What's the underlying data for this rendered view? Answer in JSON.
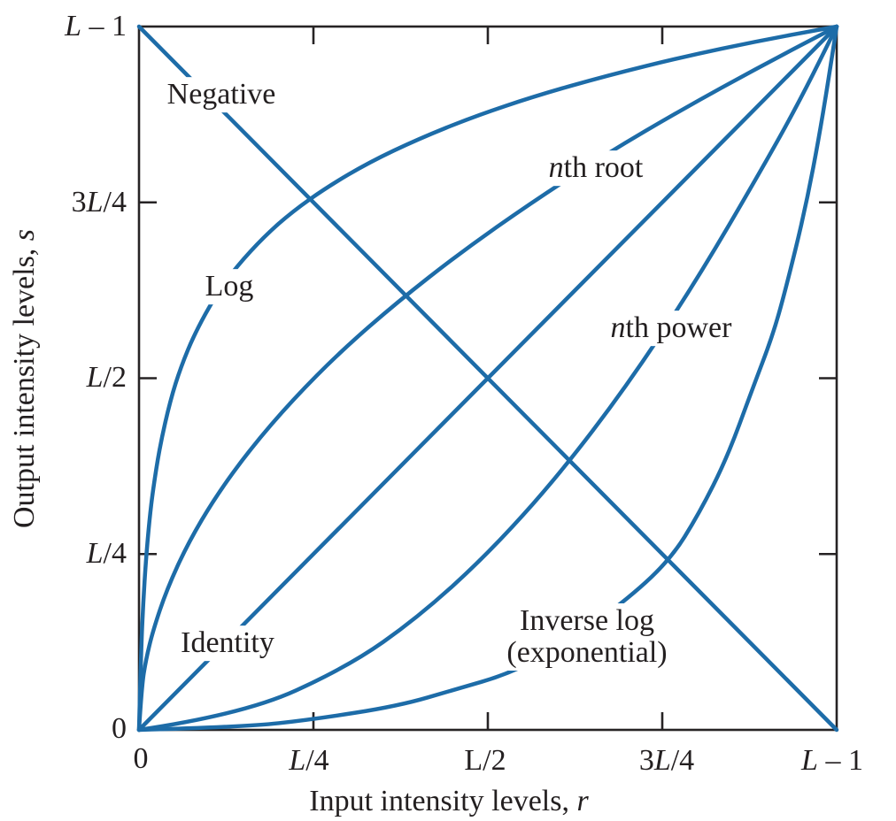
{
  "figure": {
    "background": "#ffffff",
    "curve_color": "#1d6ca8",
    "axis_color": "#262324",
    "text_color": "#231f20",
    "x_axis_title": "Input intensity levels, r",
    "y_axis_title": "Output intensity levels, s",
    "x_tick_labels": [
      "0",
      "L/4",
      "L/2",
      "3L/4",
      "L – 1"
    ],
    "y_tick_labels": [
      "0",
      "L/4",
      "L/2",
      "3L/4",
      "L – 1"
    ],
    "curve_labels": {
      "negative": "Negative",
      "log": "Log",
      "nth_root": "nth root",
      "nth_power": "nth power",
      "identity": "Identity",
      "inverse_log_line1": "Inverse log",
      "inverse_log_line2": "(exponential)"
    }
  },
  "chart_data": {
    "type": "line",
    "title": "",
    "xlabel": "Input intensity levels, r",
    "ylabel": "Output intensity levels, s",
    "x_ticks": [
      "0",
      "L/4",
      "L/2",
      "3L/4",
      "L – 1"
    ],
    "y_ticks": [
      "0",
      "L/4",
      "L/2",
      "3L/4",
      "L – 1"
    ],
    "x_range": [
      0,
      1
    ],
    "y_range": [
      0,
      1
    ],
    "units": "fraction of L – 1",
    "grid": false,
    "legend": "none (labels placed on curves)",
    "line_color": "#1d6ca8",
    "curves": [
      {
        "name": "Negative",
        "label": "Negative",
        "points": [
          [
            0,
            1
          ],
          [
            1,
            0
          ]
        ]
      },
      {
        "name": "Log",
        "label": "Log",
        "points": [
          [
            0,
            0
          ],
          [
            0.003,
            0.113
          ],
          [
            0.006,
            0.18
          ],
          [
            0.01,
            0.243
          ],
          [
            0.015,
            0.299
          ],
          [
            0.02,
            0.341
          ],
          [
            0.03,
            0.404
          ],
          [
            0.045,
            0.469
          ],
          [
            0.06,
            0.516
          ],
          [
            0.08,
            0.564
          ],
          [
            0.11,
            0.618
          ],
          [
            0.14,
            0.659
          ],
          [
            0.18,
            0.702
          ],
          [
            0.22,
            0.737
          ],
          [
            0.27,
            0.772
          ],
          [
            0.33,
            0.807
          ],
          [
            0.4,
            0.84
          ],
          [
            0.48,
            0.872
          ],
          [
            0.57,
            0.902
          ],
          [
            0.67,
            0.93
          ],
          [
            0.78,
            0.957
          ],
          [
            0.89,
            0.98
          ],
          [
            1,
            1
          ]
        ]
      },
      {
        "name": "nth root",
        "label": "nth root",
        "points": [
          [
            0,
            0
          ],
          [
            0.004,
            0.063
          ],
          [
            0.01,
            0.1
          ],
          [
            0.02,
            0.141
          ],
          [
            0.04,
            0.2
          ],
          [
            0.07,
            0.265
          ],
          [
            0.11,
            0.332
          ],
          [
            0.16,
            0.4
          ],
          [
            0.22,
            0.469
          ],
          [
            0.29,
            0.539
          ],
          [
            0.37,
            0.608
          ],
          [
            0.46,
            0.678
          ],
          [
            0.56,
            0.748
          ],
          [
            0.67,
            0.819
          ],
          [
            0.78,
            0.883
          ],
          [
            0.89,
            0.943
          ],
          [
            1,
            1
          ]
        ]
      },
      {
        "name": "Identity",
        "label": "Identity",
        "points": [
          [
            0,
            0
          ],
          [
            1,
            1
          ]
        ]
      },
      {
        "name": "nth power",
        "label": "nth power",
        "points": [
          [
            0,
            0
          ],
          [
            0.15,
            0.022
          ],
          [
            0.3,
            0.09
          ],
          [
            0.4,
            0.16
          ],
          [
            0.5,
            0.25
          ],
          [
            0.6,
            0.36
          ],
          [
            0.7,
            0.49
          ],
          [
            0.8,
            0.64
          ],
          [
            0.9,
            0.81
          ],
          [
            0.95,
            0.9
          ],
          [
            1,
            1
          ]
        ]
      },
      {
        "name": "Inverse log (exponential)",
        "label": "Inverse log (exponential)",
        "points": [
          [
            0,
            0
          ],
          [
            0.15,
            0.004
          ],
          [
            0.25,
            0.015
          ],
          [
            0.372,
            0.034
          ],
          [
            0.455,
            0.058
          ],
          [
            0.528,
            0.079
          ],
          [
            0.6,
            0.115
          ],
          [
            0.692,
            0.179
          ],
          [
            0.761,
            0.241
          ],
          [
            0.803,
            0.308
          ],
          [
            0.843,
            0.387
          ],
          [
            0.879,
            0.484
          ],
          [
            0.908,
            0.56
          ],
          [
            0.926,
            0.623
          ],
          [
            0.955,
            0.74
          ],
          [
            0.978,
            0.86
          ],
          [
            1,
            1
          ]
        ]
      }
    ]
  }
}
